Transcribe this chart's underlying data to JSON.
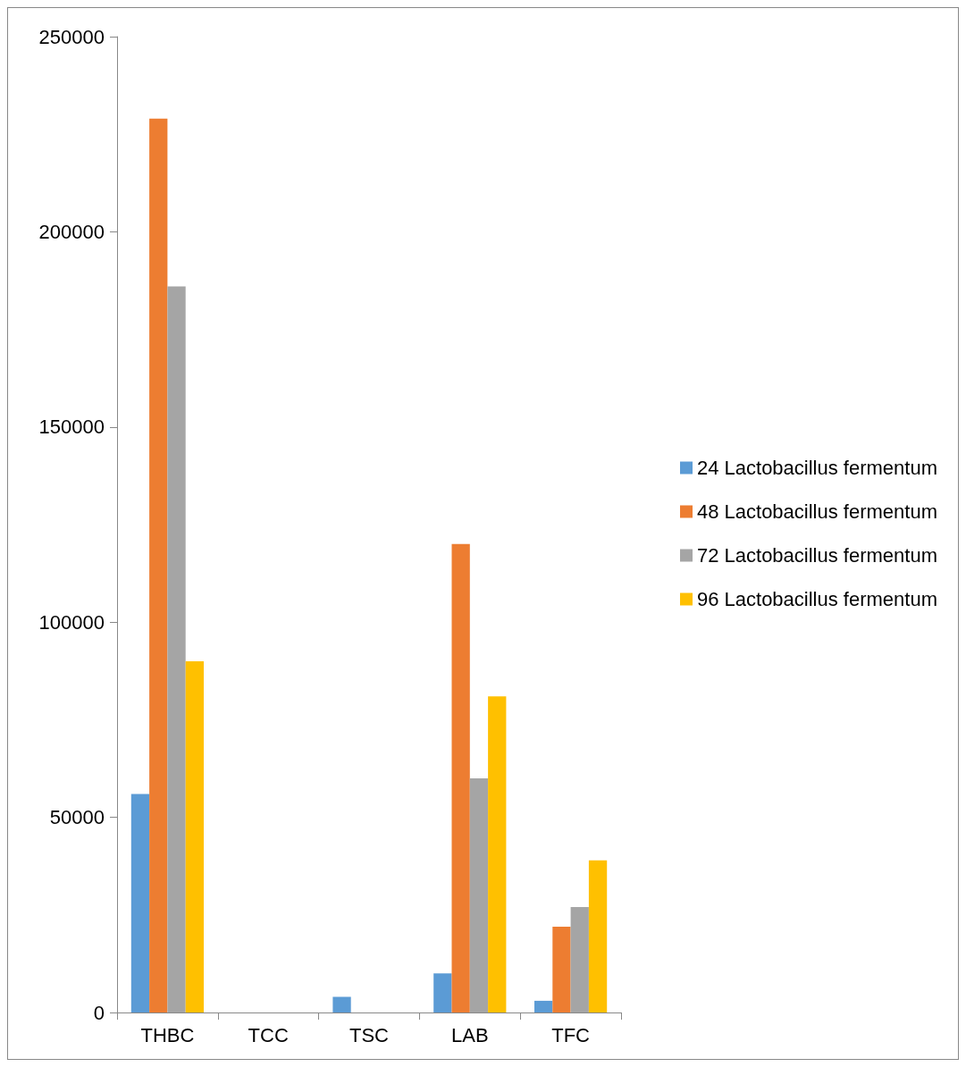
{
  "chart_data": {
    "type": "bar",
    "categories": [
      "THBC",
      "TCC",
      "TSC",
      "LAB",
      "TFC"
    ],
    "series": [
      {
        "name": "24 Lactobacillus fermentum",
        "color": "#5b9bd5",
        "values": [
          56000,
          0,
          4000,
          10000,
          3000
        ]
      },
      {
        "name": "48 Lactobacillus fermentum",
        "color": "#ed7d31",
        "values": [
          229000,
          0,
          0,
          120000,
          22000
        ]
      },
      {
        "name": "72 Lactobacillus fermentum",
        "color": "#a5a5a5",
        "values": [
          186000,
          0,
          0,
          60000,
          27000
        ]
      },
      {
        "name": "96 Lactobacillus fermentum",
        "color": "#ffc000",
        "values": [
          90000,
          0,
          0,
          81000,
          39000
        ]
      }
    ],
    "ylim": [
      0,
      250000
    ],
    "yticks": [
      0,
      50000,
      100000,
      150000,
      200000,
      250000
    ],
    "grid": false,
    "legend": "right"
  }
}
